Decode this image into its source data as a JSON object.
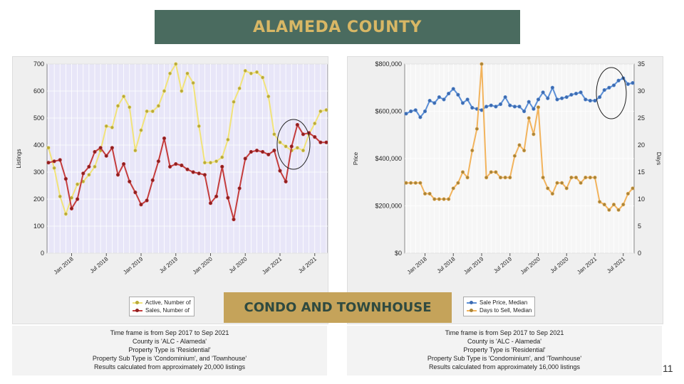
{
  "slide": {
    "title": "ALAMEDA COUNTY",
    "subtitle": "CONDO AND TOWNHOUSE",
    "page_number": "11"
  },
  "notes_left": [
    "Time frame is from Sep 2017 to Sep 2021",
    "County is 'ALC - Alameda'",
    "Property Type is 'Residential'",
    "Property Sub Type is 'Condominium', and 'Townhouse'",
    "Results calculated from approximately 20,000 listings"
  ],
  "notes_right": [
    "Time frame is from Sep 2017 to Sep 2021",
    "County is 'ALC - Alameda'",
    "Property Type is 'Residential'",
    "Property Sub Type is 'Condominium', and 'Townhouse'",
    "Results calculated from approximately 16,000 listings"
  ],
  "chart_data": [
    {
      "type": "line",
      "ylabel": "Listings",
      "ylim": [
        0,
        700
      ],
      "yticks": [
        0,
        100,
        200,
        300,
        400,
        500,
        600,
        700
      ],
      "x_start": "Sep 2017",
      "x_tick_labels": [
        "Jan 2018",
        "Jul 2018",
        "Jan 2019",
        "Jul 2019",
        "Jan 2020",
        "Jul 2020",
        "Jan 2021",
        "Jul 2021"
      ],
      "x_tick_index": [
        4,
        10,
        16,
        22,
        28,
        34,
        40,
        46
      ],
      "legend": "bottom",
      "series": [
        {
          "name": "Active, Number of",
          "color": "#f1e37a",
          "marker": "#b9aa3a",
          "values": [
            390,
            315,
            210,
            145,
            205,
            255,
            265,
            290,
            320,
            380,
            470,
            465,
            545,
            580,
            540,
            380,
            455,
            525,
            525,
            545,
            600,
            665,
            700,
            600,
            665,
            630,
            470,
            335,
            335,
            340,
            355,
            420,
            560,
            610,
            675,
            665,
            670,
            650,
            580,
            440,
            410,
            395,
            380,
            390,
            380,
            440,
            480,
            525,
            530
          ]
        },
        {
          "name": "Sales, Number of",
          "color": "#c43c3c",
          "marker": "#8e2020",
          "values": [
            335,
            340,
            345,
            275,
            165,
            200,
            295,
            320,
            375,
            390,
            360,
            390,
            290,
            330,
            265,
            225,
            180,
            195,
            270,
            340,
            425,
            320,
            330,
            325,
            310,
            300,
            295,
            290,
            185,
            210,
            320,
            205,
            125,
            240,
            350,
            375,
            380,
            375,
            365,
            380,
            305,
            265,
            395,
            475,
            440,
            445,
            430,
            410,
            410
          ]
        }
      ]
    },
    {
      "type": "line",
      "ylabel": "Price",
      "y2label": "Days",
      "ylim": [
        0,
        800000
      ],
      "yticks": [
        0,
        200000,
        400000,
        600000,
        800000
      ],
      "ytick_labels": [
        "$0",
        "$200,000",
        "$400,000",
        "$600,000",
        "$800,000"
      ],
      "y2lim": [
        0,
        35
      ],
      "y2ticks": [
        0,
        5,
        10,
        15,
        20,
        25,
        30,
        35
      ],
      "x_start": "Sep 2017",
      "x_tick_labels": [
        "Jan 2018",
        "Jul 2018",
        "Jan 2019",
        "Jul 2019",
        "Jan 2020",
        "Jul 2020",
        "Jan 2021",
        "Jul 2021"
      ],
      "x_tick_index": [
        4,
        10,
        16,
        22,
        28,
        34,
        40,
        46
      ],
      "legend": "bottom",
      "series": [
        {
          "name": "Sale Price, Median",
          "axis": "left",
          "color": "#5b8fd6",
          "marker": "#3d6bb0",
          "values": [
            590000,
            600000,
            605000,
            575000,
            600000,
            645000,
            635000,
            660000,
            650000,
            675000,
            695000,
            670000,
            635000,
            650000,
            615000,
            610000,
            605000,
            620000,
            625000,
            620000,
            630000,
            660000,
            625000,
            620000,
            620000,
            600000,
            640000,
            610000,
            650000,
            680000,
            655000,
            700000,
            650000,
            655000,
            660000,
            670000,
            675000,
            680000,
            650000,
            645000,
            645000,
            660000,
            690000,
            700000,
            710000,
            730000,
            740000,
            715000,
            720000
          ]
        },
        {
          "name": "Days to Sell, Median",
          "axis": "right",
          "color": "#f2b35c",
          "marker": "#a8853a",
          "values": [
            13,
            13,
            13,
            13,
            11,
            11,
            10,
            10,
            10,
            10,
            12,
            13,
            15,
            14,
            19,
            23,
            35,
            14,
            15,
            15,
            14,
            14,
            14,
            18,
            20,
            19,
            25,
            22,
            27,
            14,
            12,
            11,
            13,
            13,
            12,
            14,
            14,
            13,
            14,
            14,
            14,
            9.5,
            9,
            8,
            9,
            8,
            9,
            11,
            12
          ]
        }
      ]
    }
  ]
}
